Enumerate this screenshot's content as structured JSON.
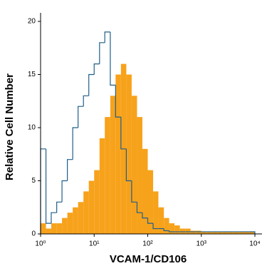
{
  "chart_data": {
    "type": "histogram",
    "x_label": "VCAM-1/CD106",
    "y_label": "Relative Cell Number",
    "log_x": true,
    "bins": [
      1,
      1.26,
      1.58,
      2,
      2.51,
      3.16,
      3.98,
      5.01,
      6.31,
      7.94,
      10,
      12.6,
      15.8,
      20,
      25.1,
      31.6,
      39.8,
      50.1,
      63.1,
      79.4,
      100,
      126,
      158,
      200,
      251,
      316,
      398,
      501,
      631,
      794,
      1000,
      1260,
      1580,
      2000,
      2510,
      3160,
      3980,
      5010,
      6310,
      7940,
      10000
    ],
    "series": [
      {
        "color": "#f7a21b",
        "style": "filled",
        "values": [
          1,
          0.5,
          1,
          1,
          1.5,
          2,
          2.5,
          3,
          4,
          5,
          6,
          9,
          11,
          13,
          15,
          16,
          15,
          13,
          11,
          8,
          6,
          4,
          2.5,
          1.5,
          1,
          0.8,
          0.5,
          0.5,
          0.3,
          0.3,
          0.2,
          0.2,
          0.2,
          0.2,
          0.2,
          0.2,
          0.2,
          0.2,
          0.2,
          0.2
        ]
      },
      {
        "color": "#1f5f8b",
        "style": "outline",
        "values": [
          8,
          1,
          2,
          3,
          5,
          7,
          10,
          12,
          13,
          15,
          16,
          18,
          19,
          14,
          11,
          8,
          5,
          3,
          2,
          1.5,
          1,
          0.5,
          0.5,
          0.3,
          0.2,
          0.2,
          0.2,
          0.2,
          0.2,
          0.2,
          0.2,
          0.2,
          0.2,
          0.2,
          0.2,
          0.2,
          0.2,
          0.2,
          0.2,
          0.2
        ]
      }
    ],
    "xlim": [
      1,
      10000
    ],
    "xticks": [
      {
        "value": 1,
        "label": "10⁰"
      },
      {
        "value": 10,
        "label": "10¹"
      },
      {
        "value": 100,
        "label": "10²"
      },
      {
        "value": 1000,
        "label": "10³"
      },
      {
        "value": 10000,
        "label": "10⁴"
      }
    ],
    "ylim": [
      0,
      20
    ],
    "yticks": [
      0,
      5,
      10,
      15,
      20
    ]
  }
}
